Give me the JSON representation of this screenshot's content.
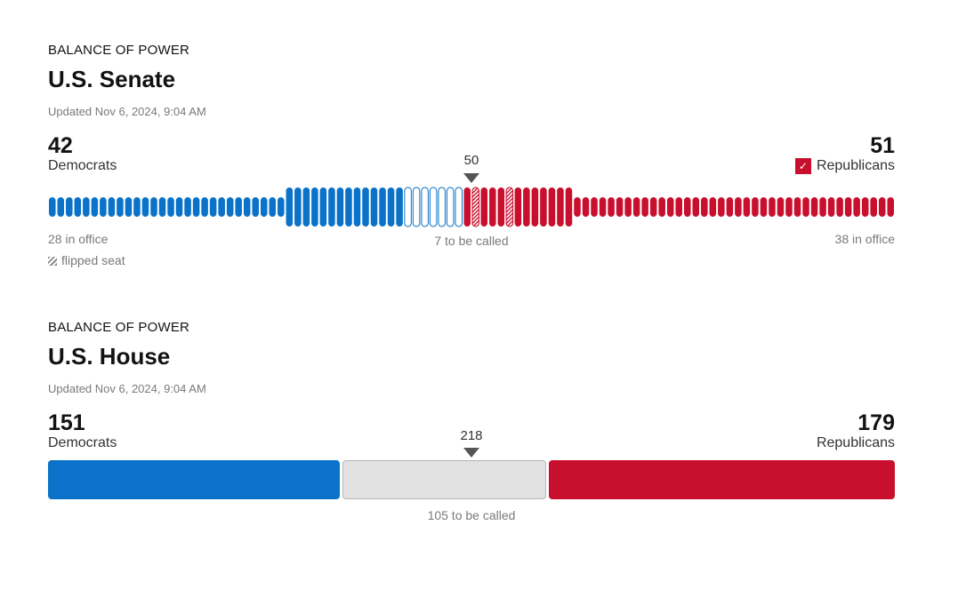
{
  "senate": {
    "kicker": "BALANCE OF POWER",
    "title": "U.S. Senate",
    "updated": "Updated Nov 6, 2024, 9:04 AM",
    "majority_label": "50",
    "legend_flipped": "flipped seat",
    "dem": {
      "name": "Democrats",
      "total_label": "42",
      "in_office_label": "28 in office"
    },
    "rep": {
      "name": "Republicans",
      "total_label": "51",
      "in_office_label": "38 in office",
      "called_winner": true
    },
    "to_be_called_label": "7 to be called"
  },
  "house": {
    "kicker": "BALANCE OF POWER",
    "title": "U.S. House",
    "updated": "Updated Nov 6, 2024, 9:04 AM",
    "majority_label": "218",
    "dem": {
      "name": "Democrats",
      "total_label": "151"
    },
    "rep": {
      "name": "Republicans",
      "total_label": "179"
    },
    "to_be_called_label": "105 to be called"
  },
  "colors": {
    "democrat": "#0a72c8",
    "republican": "#c8102e",
    "uncalled": "#e2e2e2",
    "uncalled_border": "#b5b5b5",
    "text_muted": "#7a7a7a"
  },
  "chart_data": [
    {
      "type": "bar",
      "categories": [
        "Democrats",
        "Republicans"
      ],
      "series": [
        {
          "name": "in office",
          "values": [
            28,
            38
          ]
        },
        {
          "values": [
            14,
            13
          ]
        }
      ],
      "uncalled": 7,
      "total_seats": 100,
      "majority": 50,
      "flipped_seats_rep": 2
    },
    {
      "type": "bar",
      "categories": [
        "Democrats",
        "Republicans"
      ],
      "values": [
        151,
        179
      ],
      "uncalled": 105,
      "total_seats": 435,
      "majority": 218
    }
  ]
}
